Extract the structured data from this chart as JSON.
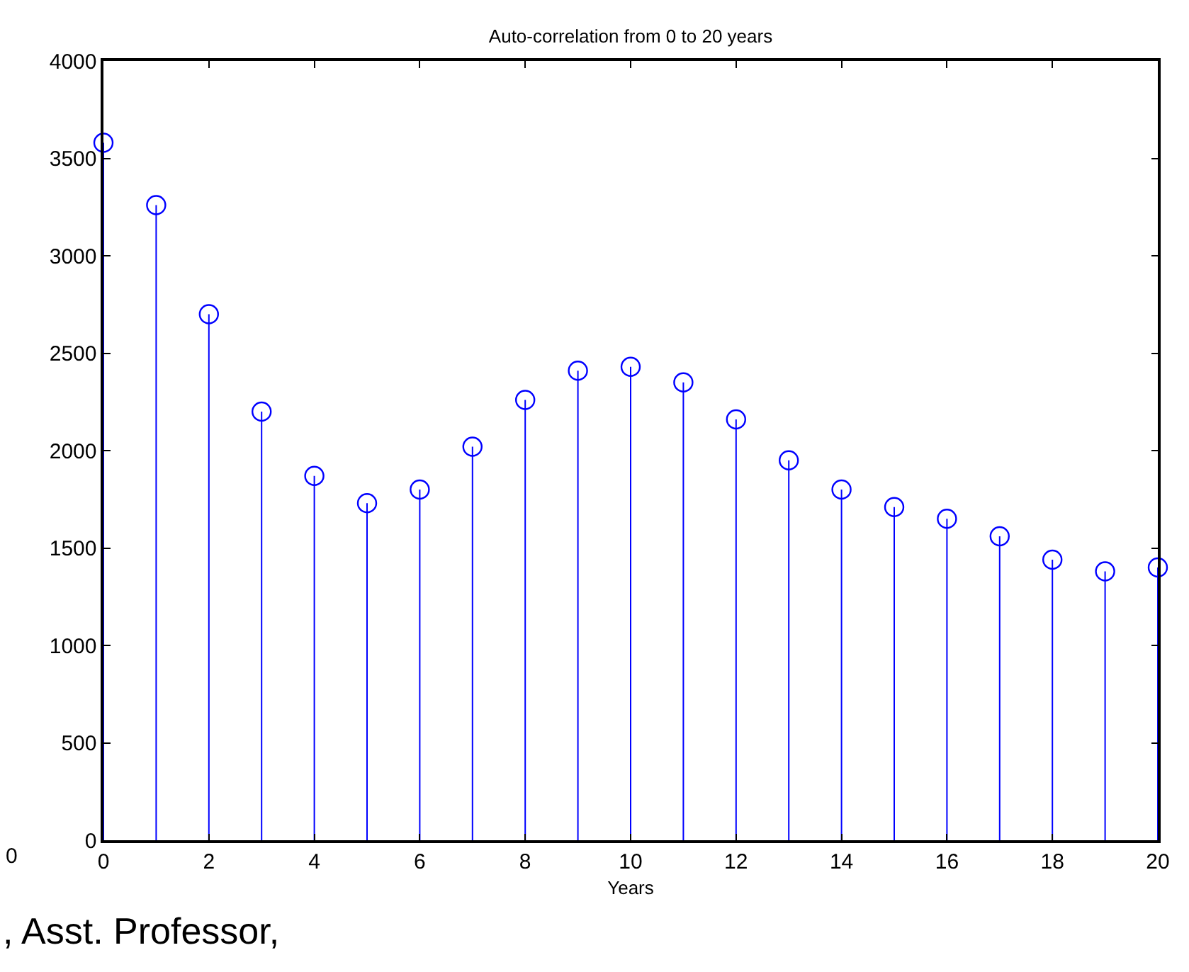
{
  "chart_data": {
    "type": "lollipop",
    "title": "Auto-correlation from 0 to 20 years",
    "xlabel": "Years",
    "x": [
      0,
      1,
      2,
      3,
      4,
      5,
      6,
      7,
      8,
      9,
      10,
      11,
      12,
      13,
      14,
      15,
      16,
      17,
      18,
      19,
      20
    ],
    "series": [
      {
        "color": "#0000ff",
        "values": [
          3580,
          3260,
          2700,
          2200,
          1870,
          1730,
          1800,
          2020,
          2260,
          2410,
          2430,
          2350,
          2160,
          1950,
          1800,
          1710,
          1650,
          1560,
          1440,
          1380,
          1400
        ]
      }
    ],
    "xlim": [
      0,
      20
    ],
    "xticks": [
      0,
      2,
      4,
      6,
      8,
      10,
      12,
      14,
      16,
      18,
      20
    ],
    "ylim": [
      0,
      4000
    ],
    "yticks": [
      0,
      500,
      1000,
      1500,
      2000,
      2500,
      3000,
      3500,
      4000
    ],
    "marker": "circle",
    "annotations": [
      "0",
      ", Asst. Professor,"
    ]
  }
}
